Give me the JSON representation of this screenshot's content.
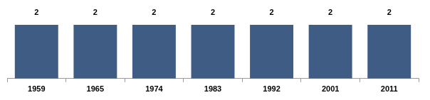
{
  "chart_data": {
    "type": "bar",
    "categories": [
      "1959",
      "1965",
      "1974",
      "1983",
      "1992",
      "2001",
      "2011"
    ],
    "values": [
      2,
      2,
      2,
      2,
      2,
      2,
      2
    ],
    "color": "#3f5d84",
    "ylim": [
      0,
      2
    ],
    "yticks": [
      0,
      2
    ],
    "grid": false,
    "data_labels": true,
    "tick_labels": "x"
  }
}
